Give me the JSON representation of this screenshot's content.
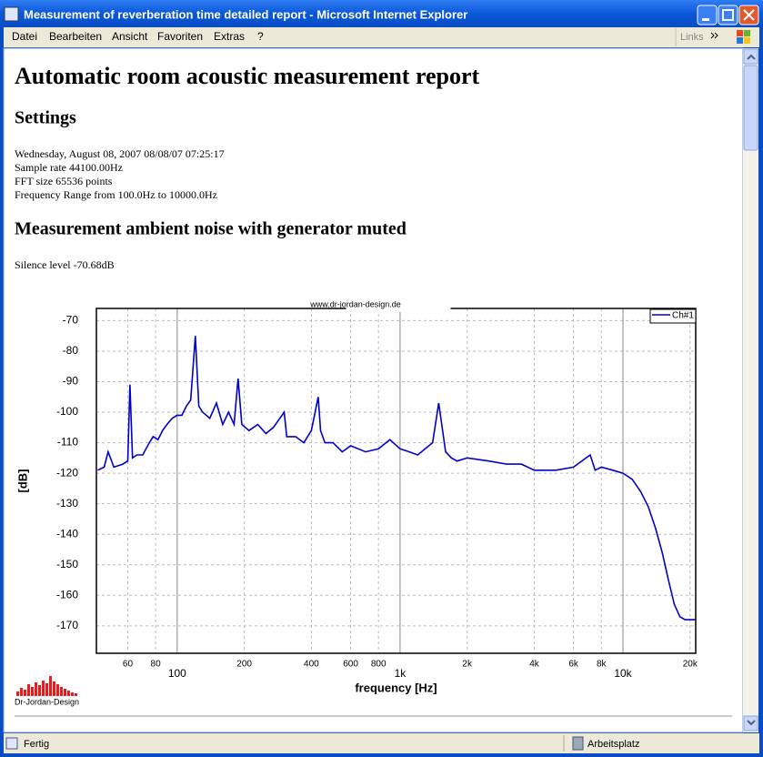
{
  "window": {
    "title": "Measurement of reverberation time detailed report - Microsoft Internet Explorer",
    "menu": [
      "Datei",
      "Bearbeiten",
      "Ansicht",
      "Favoriten",
      "Extras",
      "?"
    ],
    "links": "Links"
  },
  "report": {
    "title": "Automatic room acoustic measurement report",
    "settings_heading": "Settings",
    "settings": [
      "Wednesday, August 08, 2007 08/08/07 07:25:17",
      "Sample rate 44100.00Hz",
      "FFT size 65536 points",
      "Frequency Range from 100.0Hz to 10000.0Hz"
    ],
    "noise_heading": "Measurement ambient noise with generator muted",
    "silence_level": "Silence level -70.68dB",
    "logo": "Dr-Jordan-Design"
  },
  "status": {
    "left": "Fertig",
    "right": "Arbeitsplatz"
  },
  "chart_data": {
    "type": "line",
    "title": "www.dr-jordan-design.de",
    "xlabel": "frequency [Hz]",
    "ylabel": "[dB]",
    "x_scale": "log",
    "grid": true,
    "legend": "upper right",
    "xlim": [
      43.4,
      21200
    ],
    "ylim": [
      -179,
      -66
    ],
    "xticks": [
      100,
      {
        "value": 1000,
        "label": "1k"
      },
      {
        "value": 10000,
        "label": "10k"
      }
    ],
    "xticks_minor": [
      60,
      80,
      200,
      400,
      600,
      800,
      {
        "value": 2000,
        "label": "2k"
      },
      {
        "value": 4000,
        "label": "4k"
      },
      {
        "value": 6000,
        "label": "6k"
      },
      {
        "value": 8000,
        "label": "8k"
      },
      {
        "value": 20000,
        "label": "20k"
      }
    ],
    "yticks": [
      -70,
      -80,
      -90,
      -100,
      -110,
      -120,
      -130,
      -140,
      -150,
      -160,
      -170
    ],
    "x": [
      44,
      47,
      49,
      52,
      57,
      60,
      61.4,
      63,
      66,
      70,
      75,
      78,
      82,
      86,
      90,
      95,
      100,
      105,
      110,
      115,
      120.6,
      125,
      130,
      140,
      150,
      160,
      170,
      180,
      187.6,
      195,
      210,
      230,
      250,
      270,
      302,
      310,
      340,
      370,
      400,
      429,
      440,
      460,
      500,
      550,
      600,
      700,
      800,
      900,
      1000,
      1100,
      1200,
      1400,
      1490,
      1600,
      1700,
      1800,
      2000,
      2500,
      3000,
      3500,
      4000,
      5000,
      6000,
      7130,
      7500,
      8000,
      9000,
      10000,
      11000,
      12000,
      13000,
      14000,
      15000,
      16000,
      17000,
      18000,
      19000,
      21200
    ],
    "series": [
      {
        "name": "Ch#1",
        "color": "#0000cc",
        "values": [
          -119,
          -118,
          -113,
          -118,
          -117,
          -116,
          -91,
          -115,
          -114,
          -114,
          -110,
          -108,
          -109,
          -106,
          -104,
          -102,
          -101,
          -101,
          -98,
          -96,
          -75,
          -98,
          -100,
          -102,
          -97,
          -104,
          -100,
          -104,
          -89,
          -104,
          -106,
          -104,
          -107,
          -105,
          -100,
          -108,
          -108,
          -110,
          -106,
          -95,
          -106,
          -110,
          -110,
          -113,
          -111,
          -113,
          -112,
          -109,
          -112,
          -113,
          -114,
          -110,
          -97,
          -113,
          -115,
          -116,
          -115,
          -116,
          -117,
          -117,
          -119,
          -119,
          -118,
          -114,
          -119,
          -118,
          -119,
          -120,
          -122,
          -126,
          -131,
          -138,
          -146,
          -155,
          -163,
          -167,
          -168,
          -168
        ]
      }
    ]
  }
}
